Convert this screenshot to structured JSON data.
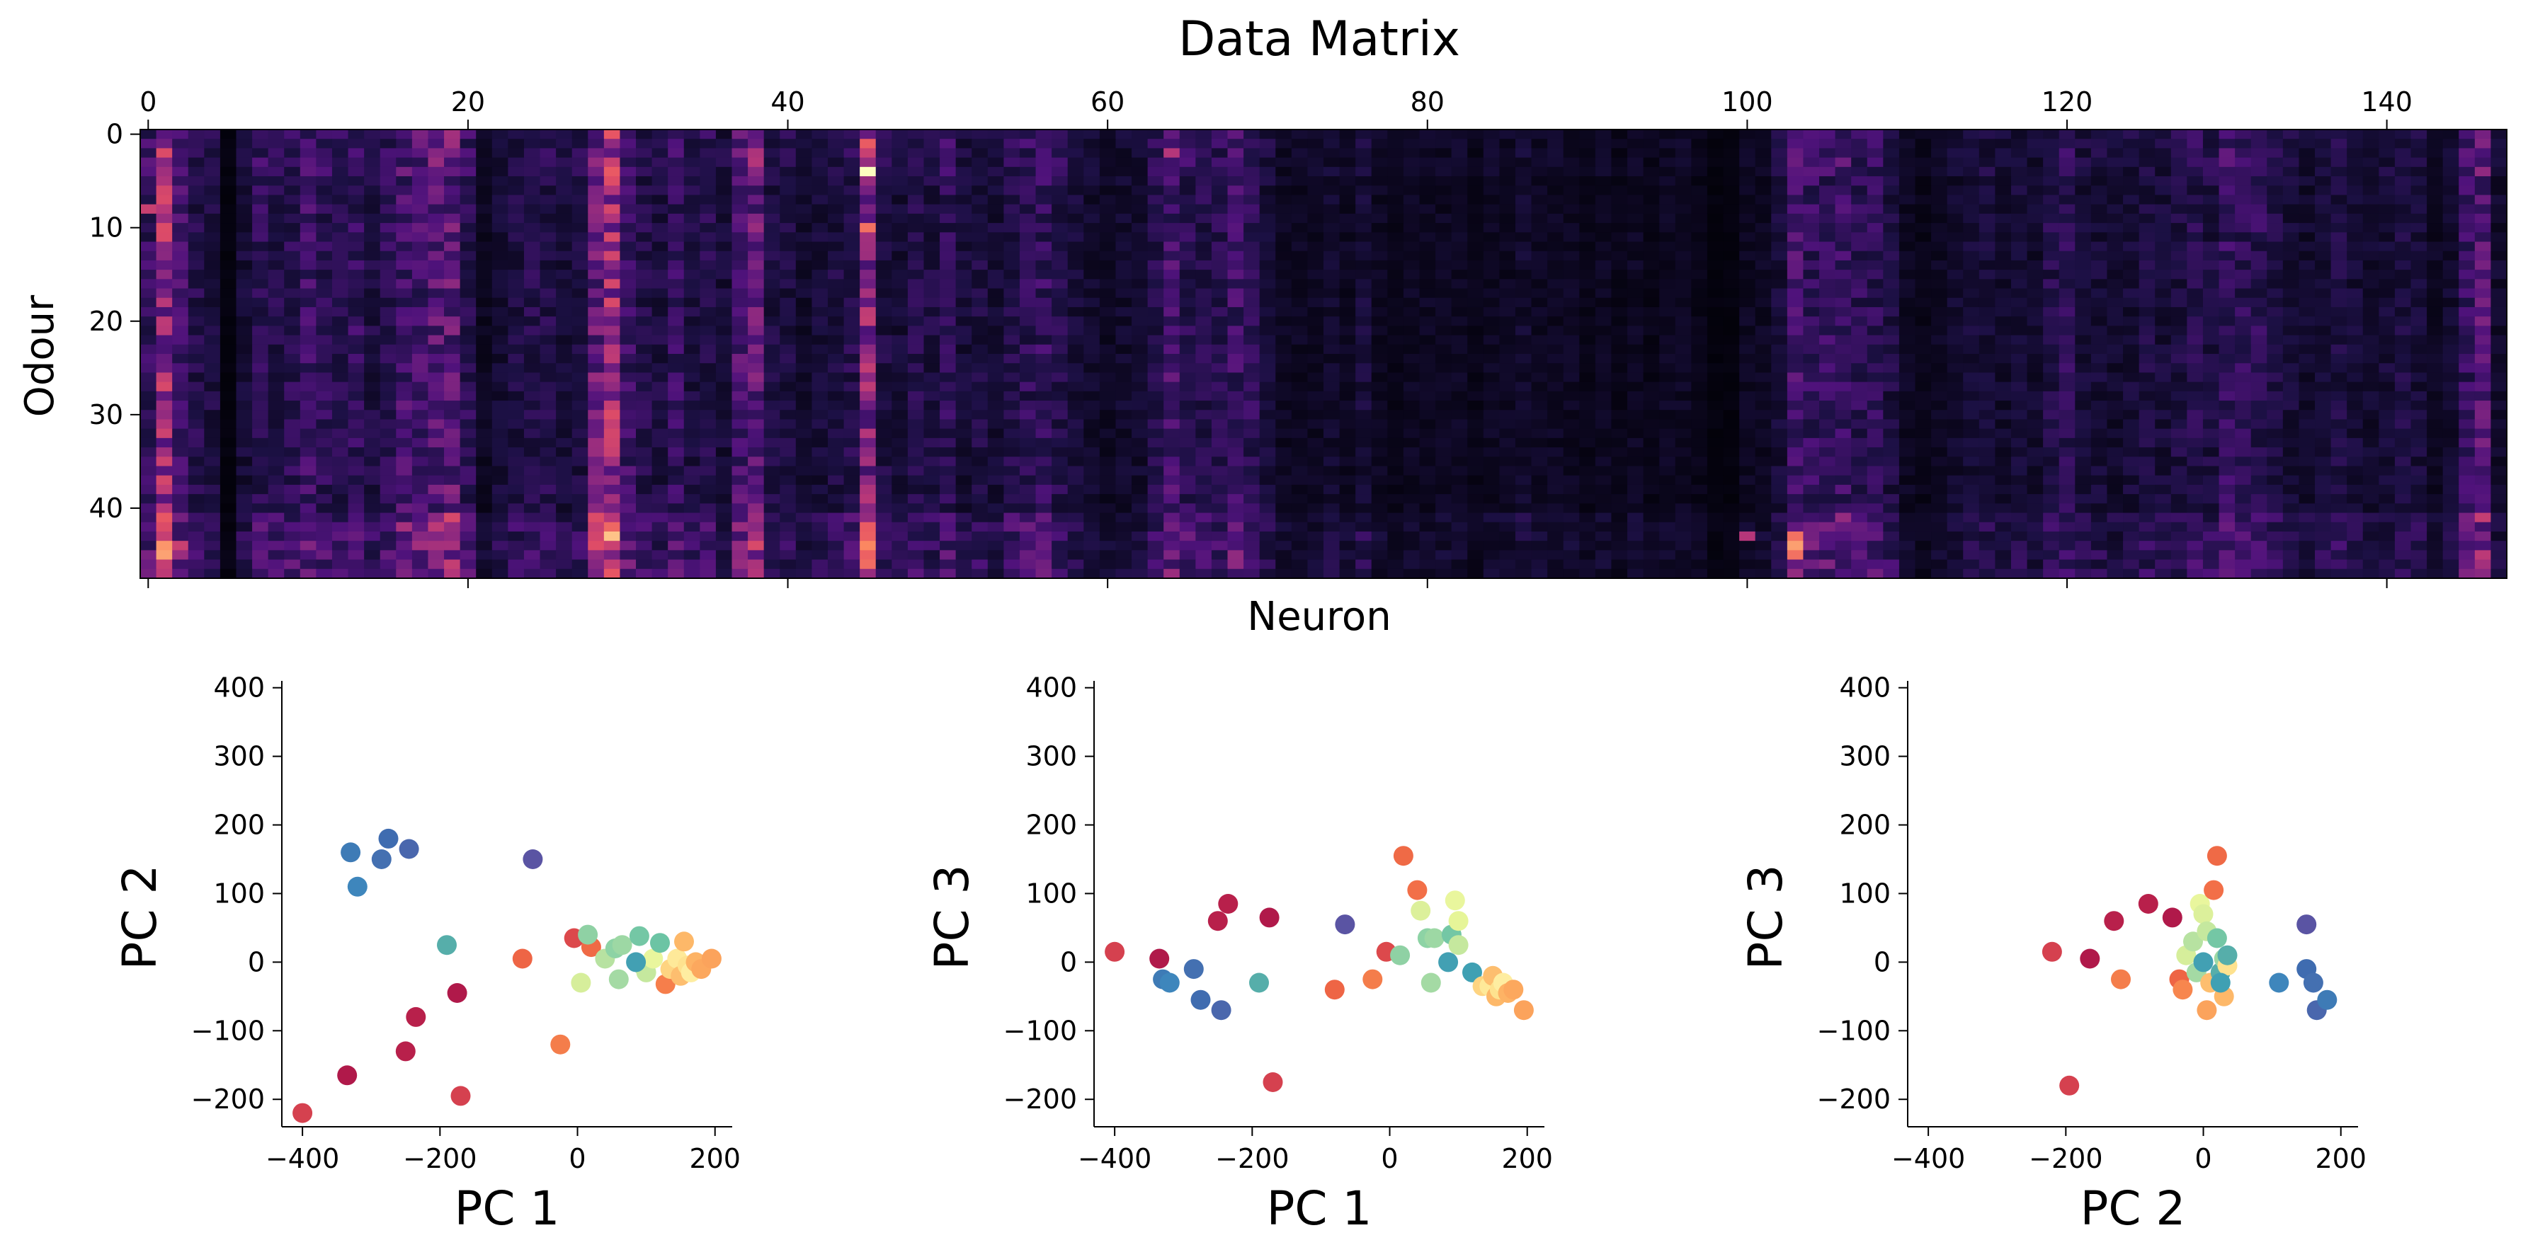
{
  "figure": {
    "heatmap_title": "Data Matrix",
    "heatmap_xlabel": "Neuron",
    "heatmap_ylabel": "Odour"
  },
  "chart_data": [
    {
      "type": "heatmap",
      "title": "Data Matrix",
      "xlabel": "Neuron",
      "ylabel": "Odour",
      "n_rows": 48,
      "n_cols": 148,
      "x_ticks": [
        0,
        20,
        40,
        60,
        80,
        100,
        120,
        140
      ],
      "y_ticks": [
        0,
        10,
        20,
        30,
        40
      ],
      "x_axis_position": "top",
      "colormap": "magma",
      "colormap_stops": [
        "#000004",
        "#1c1044",
        "#4f127b",
        "#812581",
        "#b5367a",
        "#e55064",
        "#fb8761",
        "#fec287",
        "#fcfdbf"
      ],
      "column_means": [
        0.18,
        0.42,
        0.22,
        0.14,
        0.12,
        0.02,
        0.1,
        0.16,
        0.14,
        0.16,
        0.2,
        0.16,
        0.14,
        0.18,
        0.12,
        0.16,
        0.22,
        0.22,
        0.26,
        0.28,
        0.16,
        0.06,
        0.1,
        0.12,
        0.14,
        0.14,
        0.1,
        0.12,
        0.3,
        0.42,
        0.2,
        0.14,
        0.12,
        0.18,
        0.12,
        0.14,
        0.1,
        0.24,
        0.3,
        0.12,
        0.12,
        0.08,
        0.1,
        0.12,
        0.14,
        0.38,
        0.12,
        0.1,
        0.14,
        0.12,
        0.16,
        0.1,
        0.12,
        0.1,
        0.14,
        0.16,
        0.18,
        0.14,
        0.1,
        0.08,
        0.06,
        0.08,
        0.08,
        0.14,
        0.22,
        0.16,
        0.14,
        0.14,
        0.2,
        0.16,
        0.1,
        0.06,
        0.06,
        0.06,
        0.08,
        0.06,
        0.1,
        0.06,
        0.04,
        0.06,
        0.06,
        0.06,
        0.06,
        0.04,
        0.06,
        0.06,
        0.08,
        0.06,
        0.06,
        0.06,
        0.04,
        0.06,
        0.04,
        0.06,
        0.04,
        0.06,
        0.06,
        0.04,
        0.02,
        0.02,
        0.06,
        0.06,
        0.1,
        0.22,
        0.18,
        0.18,
        0.2,
        0.16,
        0.16,
        0.12,
        0.06,
        0.04,
        0.06,
        0.08,
        0.1,
        0.1,
        0.08,
        0.1,
        0.08,
        0.14,
        0.16,
        0.1,
        0.1,
        0.08,
        0.1,
        0.12,
        0.1,
        0.12,
        0.14,
        0.12,
        0.18,
        0.16,
        0.16,
        0.12,
        0.1,
        0.08,
        0.1,
        0.12,
        0.1,
        0.08,
        0.1,
        0.12,
        0.1,
        0.06,
        0.08,
        0.18,
        0.26,
        0.08
      ],
      "bright_cells": [
        {
          "row": 4,
          "col": 45,
          "value": 1.0
        },
        {
          "row": 1,
          "col": 45,
          "value": 0.65
        },
        {
          "row": 10,
          "col": 45,
          "value": 0.7
        },
        {
          "row": 44,
          "col": 103,
          "value": 0.8
        },
        {
          "row": 43,
          "col": 103,
          "value": 0.7
        },
        {
          "row": 45,
          "col": 103,
          "value": 0.7
        },
        {
          "row": 42,
          "col": 45,
          "value": 0.65
        },
        {
          "row": 41,
          "col": 28,
          "value": 0.6
        },
        {
          "row": 2,
          "col": 1,
          "value": 0.6
        },
        {
          "row": 8,
          "col": 0,
          "value": 0.55
        },
        {
          "row": 42,
          "col": 1,
          "value": 0.6
        },
        {
          "row": 44,
          "col": 2,
          "value": 0.55
        },
        {
          "row": 3,
          "col": 29,
          "value": 0.55
        },
        {
          "row": 2,
          "col": 64,
          "value": 0.5
        },
        {
          "row": 43,
          "col": 100,
          "value": 0.5
        }
      ]
    },
    {
      "type": "scatter",
      "xlabel": "PC 1",
      "ylabel": "PC 2",
      "xlim": [
        -430,
        225
      ],
      "ylim": [
        -240,
        410
      ],
      "x_ticks": [
        -400,
        -200,
        0,
        200
      ],
      "y_ticks": [
        -200,
        -100,
        0,
        100,
        200,
        300,
        400
      ],
      "grid": false,
      "points": [
        {
          "x": -330,
          "y": 160,
          "color": "#3e7bb6"
        },
        {
          "x": -320,
          "y": 110,
          "color": "#3e86bc"
        },
        {
          "x": -285,
          "y": 150,
          "color": "#4470b1"
        },
        {
          "x": -275,
          "y": 180,
          "color": "#3f6cb0"
        },
        {
          "x": -245,
          "y": 165,
          "color": "#4a67ad"
        },
        {
          "x": -65,
          "y": 150,
          "color": "#5a54a3"
        },
        {
          "x": -190,
          "y": 25,
          "color": "#56aeaa"
        },
        {
          "x": -400,
          "y": -220,
          "color": "#d5414f"
        },
        {
          "x": -335,
          "y": -165,
          "color": "#b0194a"
        },
        {
          "x": -250,
          "y": -130,
          "color": "#b8204b"
        },
        {
          "x": -235,
          "y": -80,
          "color": "#b8204b"
        },
        {
          "x": -175,
          "y": -45,
          "color": "#b0194a"
        },
        {
          "x": -170,
          "y": -195,
          "color": "#d5414f"
        },
        {
          "x": -80,
          "y": 5,
          "color": "#ee6545"
        },
        {
          "x": -25,
          "y": -120,
          "color": "#f47d4b"
        },
        {
          "x": -5,
          "y": 35,
          "color": "#dc494c"
        },
        {
          "x": 20,
          "y": 22,
          "color": "#ef6a46"
        },
        {
          "x": 15,
          "y": 40,
          "color": "#8fd1a4"
        },
        {
          "x": 40,
          "y": 5,
          "color": "#b7e2a1"
        },
        {
          "x": 55,
          "y": 20,
          "color": "#8dd3a5"
        },
        {
          "x": 65,
          "y": 25,
          "color": "#9dd8a4"
        },
        {
          "x": 60,
          "y": -25,
          "color": "#a4daa4"
        },
        {
          "x": 5,
          "y": -30,
          "color": "#d6ee9b"
        },
        {
          "x": 90,
          "y": 38,
          "color": "#74c7a5"
        },
        {
          "x": 95,
          "y": -5,
          "color": "#a7dca4"
        },
        {
          "x": 100,
          "y": -15,
          "color": "#c5e89e"
        },
        {
          "x": 110,
          "y": 5,
          "color": "#e9f69d"
        },
        {
          "x": 120,
          "y": 28,
          "color": "#6cc4a4"
        },
        {
          "x": 128,
          "y": -32,
          "color": "#f67e4b"
        },
        {
          "x": 135,
          "y": -10,
          "color": "#fed481"
        },
        {
          "x": 145,
          "y": 5,
          "color": "#fee999"
        },
        {
          "x": 150,
          "y": -20,
          "color": "#fdbe6f"
        },
        {
          "x": 155,
          "y": 30,
          "color": "#fdb869"
        },
        {
          "x": 160,
          "y": -5,
          "color": "#fee28f"
        },
        {
          "x": 165,
          "y": -15,
          "color": "#feeda1"
        },
        {
          "x": 172,
          "y": 0,
          "color": "#fdb365"
        },
        {
          "x": 180,
          "y": -10,
          "color": "#fca85e"
        },
        {
          "x": 195,
          "y": 5,
          "color": "#fba35c"
        },
        {
          "x": 85,
          "y": 0,
          "color": "#42a0b3"
        }
      ]
    },
    {
      "type": "scatter",
      "xlabel": "PC 1",
      "ylabel": "PC 3",
      "xlim": [
        -430,
        225
      ],
      "ylim": [
        -240,
        410
      ],
      "x_ticks": [
        -400,
        -200,
        0,
        200
      ],
      "y_ticks": [
        -200,
        -100,
        0,
        100,
        200,
        300,
        400
      ],
      "grid": false,
      "points": [
        {
          "x": -400,
          "y": 15,
          "color": "#d5414f"
        },
        {
          "x": -335,
          "y": 5,
          "color": "#b0194a"
        },
        {
          "x": -330,
          "y": -25,
          "color": "#3e7bb6"
        },
        {
          "x": -320,
          "y": -30,
          "color": "#3e86bc"
        },
        {
          "x": -285,
          "y": -10,
          "color": "#4470b1"
        },
        {
          "x": -275,
          "y": -55,
          "color": "#3f6cb0"
        },
        {
          "x": -245,
          "y": -70,
          "color": "#4a67ad"
        },
        {
          "x": -250,
          "y": 60,
          "color": "#b8204b"
        },
        {
          "x": -235,
          "y": 85,
          "color": "#b8204b"
        },
        {
          "x": -175,
          "y": 65,
          "color": "#b0194a"
        },
        {
          "x": -170,
          "y": -175,
          "color": "#d5414f"
        },
        {
          "x": -190,
          "y": -30,
          "color": "#56aeaa"
        },
        {
          "x": -80,
          "y": -40,
          "color": "#ee6545"
        },
        {
          "x": -65,
          "y": 55,
          "color": "#5a54a3"
        },
        {
          "x": -25,
          "y": -25,
          "color": "#f47d4b"
        },
        {
          "x": -5,
          "y": 15,
          "color": "#dc494c"
        },
        {
          "x": 20,
          "y": 155,
          "color": "#ef6a46"
        },
        {
          "x": 40,
          "y": 105,
          "color": "#f26f48"
        },
        {
          "x": 15,
          "y": 10,
          "color": "#8fd1a4"
        },
        {
          "x": 45,
          "y": 75,
          "color": "#dcf09b"
        },
        {
          "x": 55,
          "y": 35,
          "color": "#8dd3a5"
        },
        {
          "x": 65,
          "y": 35,
          "color": "#9dd8a4"
        },
        {
          "x": 60,
          "y": -30,
          "color": "#a4daa4"
        },
        {
          "x": 90,
          "y": 40,
          "color": "#74c7a5"
        },
        {
          "x": 95,
          "y": 90,
          "color": "#e9f69d"
        },
        {
          "x": 100,
          "y": 25,
          "color": "#c5e89e"
        },
        {
          "x": 100,
          "y": 60,
          "color": "#e6f598"
        },
        {
          "x": 85,
          "y": 0,
          "color": "#42a0b3"
        },
        {
          "x": 120,
          "y": -15,
          "color": "#3fa0b3"
        },
        {
          "x": 135,
          "y": -35,
          "color": "#fed481"
        },
        {
          "x": 145,
          "y": -35,
          "color": "#fee999"
        },
        {
          "x": 150,
          "y": -20,
          "color": "#fdbe6f"
        },
        {
          "x": 155,
          "y": -50,
          "color": "#fdb869"
        },
        {
          "x": 160,
          "y": -40,
          "color": "#fee28f"
        },
        {
          "x": 165,
          "y": -30,
          "color": "#feeda1"
        },
        {
          "x": 172,
          "y": -45,
          "color": "#fdb365"
        },
        {
          "x": 180,
          "y": -40,
          "color": "#fca85e"
        },
        {
          "x": 195,
          "y": -70,
          "color": "#fba35c"
        }
      ]
    },
    {
      "type": "scatter",
      "xlabel": "PC 2",
      "ylabel": "PC 3",
      "xlim": [
        -430,
        225
      ],
      "ylim": [
        -240,
        410
      ],
      "x_ticks": [
        -400,
        -200,
        0,
        200
      ],
      "y_ticks": [
        -200,
        -100,
        0,
        100,
        200,
        300,
        400
      ],
      "grid": false,
      "points": [
        {
          "x": -220,
          "y": 15,
          "color": "#d5414f"
        },
        {
          "x": -195,
          "y": -180,
          "color": "#d5414f"
        },
        {
          "x": -165,
          "y": 5,
          "color": "#b0194a"
        },
        {
          "x": -130,
          "y": 60,
          "color": "#b8204b"
        },
        {
          "x": -120,
          "y": -25,
          "color": "#f47d4b"
        },
        {
          "x": -80,
          "y": 85,
          "color": "#b8204b"
        },
        {
          "x": -45,
          "y": 65,
          "color": "#b0194a"
        },
        {
          "x": -35,
          "y": -25,
          "color": "#ee6545"
        },
        {
          "x": -30,
          "y": -40,
          "color": "#f7864e"
        },
        {
          "x": -25,
          "y": 10,
          "color": "#d6ee9b"
        },
        {
          "x": -15,
          "y": 30,
          "color": "#b7e2a1"
        },
        {
          "x": -10,
          "y": -15,
          "color": "#a4daa4"
        },
        {
          "x": -5,
          "y": 85,
          "color": "#e9f69d"
        },
        {
          "x": 0,
          "y": 70,
          "color": "#dcf09b"
        },
        {
          "x": 0,
          "y": 0,
          "color": "#42a0b3"
        },
        {
          "x": 5,
          "y": -70,
          "color": "#fba35c"
        },
        {
          "x": 5,
          "y": 45,
          "color": "#c5e89e"
        },
        {
          "x": 10,
          "y": -30,
          "color": "#fdbe6f"
        },
        {
          "x": 15,
          "y": 105,
          "color": "#f26f48"
        },
        {
          "x": 20,
          "y": 155,
          "color": "#ef6a46"
        },
        {
          "x": 20,
          "y": 35,
          "color": "#74c7a5"
        },
        {
          "x": 25,
          "y": -15,
          "color": "#56aeaa"
        },
        {
          "x": 30,
          "y": -50,
          "color": "#fdb869"
        },
        {
          "x": 30,
          "y": 5,
          "color": "#9dd8a4"
        },
        {
          "x": 35,
          "y": -5,
          "color": "#fee28f"
        },
        {
          "x": 35,
          "y": 10,
          "color": "#56aeaa"
        },
        {
          "x": 25,
          "y": -30,
          "color": "#3fa0b3"
        },
        {
          "x": 110,
          "y": -30,
          "color": "#3e86bc"
        },
        {
          "x": 150,
          "y": -10,
          "color": "#3f6cb0"
        },
        {
          "x": 150,
          "y": 55,
          "color": "#5a54a3"
        },
        {
          "x": 160,
          "y": -30,
          "color": "#4470b1"
        },
        {
          "x": 165,
          "y": -70,
          "color": "#4a67ad"
        },
        {
          "x": 180,
          "y": -55,
          "color": "#3e7bb6"
        }
      ]
    }
  ]
}
